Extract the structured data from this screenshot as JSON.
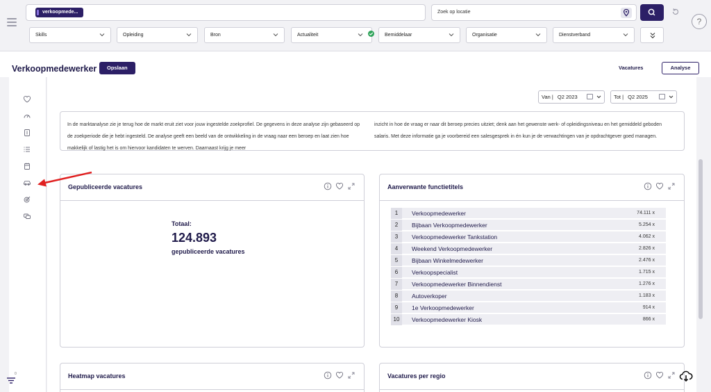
{
  "search": {
    "chip_label": "verkoopmede...",
    "location_placeholder": "Zoek op locatie",
    "help_label": "?"
  },
  "filters": [
    {
      "label": "Skills"
    },
    {
      "label": "Opleiding"
    },
    {
      "label": "Bron"
    },
    {
      "label": "Actualiteit"
    },
    {
      "label": "Bemiddelaar"
    },
    {
      "label": "Organisatie"
    },
    {
      "label": "Dienstverband"
    }
  ],
  "header": {
    "title": "Verkoopmedewerker",
    "save_label": "Opslaan",
    "tab_vacatures": "Vacatures",
    "tab_analyse": "Analyse"
  },
  "dates": {
    "from_prefix": "Van |",
    "from_value": "Q2 2023",
    "to_prefix": "Tot |",
    "to_value": "Q2 2025"
  },
  "intro": {
    "left": "In de marktanalyse zie je terug hoe de markt eruit ziet voor jouw ingestelde zoekprofiel. De gegevens in deze analyse zijn gebaseerd op de zoekperiode die je hebt ingesteld. De analyse geeft een beeld van de ontwikkeling in de vraag naar een beroep en laat zien hoe makkelijk of lastig het is om hiervoor kandidaten te werven. Daarnaast krijg je meer",
    "right": "inzicht in hoe de vraag er naar dit beroep precies uitziet; denk aan het gewenste werk- of opleidingsniveau en het gemiddeld geboden salaris. Met deze informatie ga je voorbereid een salesgesprek in én kun je de verwachtingen van je opdrachtgever goed managen."
  },
  "cards": {
    "published": {
      "title": "Gepubliceerde vacatures",
      "total_label": "Totaal:",
      "total_value": "124.893",
      "total_sub": "gepubliceerde vacatures"
    },
    "related": {
      "title": "Aanverwante functietitels",
      "rows": [
        {
          "rank": "1",
          "name": "Verkoopmedewerker",
          "count": "74.111 x"
        },
        {
          "rank": "2",
          "name": "Bijbaan Verkoopmedewerker",
          "count": "5.254 x"
        },
        {
          "rank": "3",
          "name": "Verkoopmedewerker Tankstation",
          "count": "4.062 x"
        },
        {
          "rank": "4",
          "name": "Weekend Verkoopmedewerker",
          "count": "2.826 x"
        },
        {
          "rank": "5",
          "name": "Bijbaan Winkelmedewerker",
          "count": "2.476 x"
        },
        {
          "rank": "6",
          "name": "Verkoopspecialist",
          "count": "1.715 x"
        },
        {
          "rank": "7",
          "name": "Verkoopmedewerker Binnendienst",
          "count": "1.276 x"
        },
        {
          "rank": "8",
          "name": "Autoverkoper",
          "count": "1.183 x"
        },
        {
          "rank": "9",
          "name": "1e Verkoopmedewerker",
          "count": "914 x"
        },
        {
          "rank": "10",
          "name": "Verkoopmedewerker Kiosk",
          "count": "866 x"
        }
      ]
    },
    "heatmap": {
      "title": "Heatmap vacatures"
    },
    "regions": {
      "title": "Vacatures per regio"
    }
  },
  "sidebar_icons": [
    "heart-icon",
    "gauge-icon",
    "money-icon",
    "list-icon",
    "calendar-icon",
    "car-icon",
    "target-icon",
    "cards-icon"
  ],
  "filter_fab_badge": "0",
  "colors": {
    "primary": "#2c1f66",
    "accent": "#8b74e0",
    "success": "#2fa35a",
    "annotation_arrow": "#e02020"
  }
}
